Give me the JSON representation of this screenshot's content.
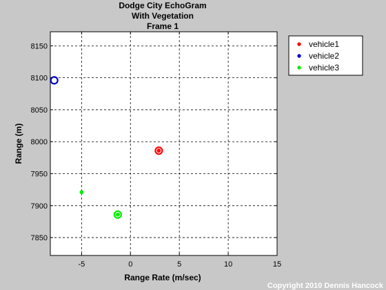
{
  "chart_data": {
    "type": "scatter",
    "title": [
      "Dodge City EchoGram",
      "With Vegetation",
      "Frame 1"
    ],
    "xlabel": "Range Rate (m/sec)",
    "ylabel": "Range (m)",
    "xlim": [
      -8.2,
      15
    ],
    "ylim": [
      7822,
      8172
    ],
    "xticks": [
      -5,
      0,
      5,
      10,
      15
    ],
    "yticks": [
      7850,
      7900,
      7950,
      8000,
      8050,
      8100,
      8150
    ],
    "grid": true,
    "legend_position": "outside-top-right",
    "series": [
      {
        "name": "vehicle1",
        "color": "#ff0000",
        "points": [
          {
            "x": 2.9,
            "y": 7986
          }
        ],
        "rings": [
          {
            "x": 2.9,
            "y": 7986
          }
        ]
      },
      {
        "name": "vehicle2",
        "color": "#0000cc",
        "points": [],
        "rings": [
          {
            "x": -7.8,
            "y": 8096
          }
        ]
      },
      {
        "name": "vehicle3",
        "color": "#00ee00",
        "points": [
          {
            "x": -5.0,
            "y": 7921
          },
          {
            "x": -1.3,
            "y": 7886
          }
        ],
        "rings": [
          {
            "x": -1.3,
            "y": 7886
          }
        ]
      }
    ]
  },
  "copyright": "Copyright 2010 Dennis Hancock"
}
